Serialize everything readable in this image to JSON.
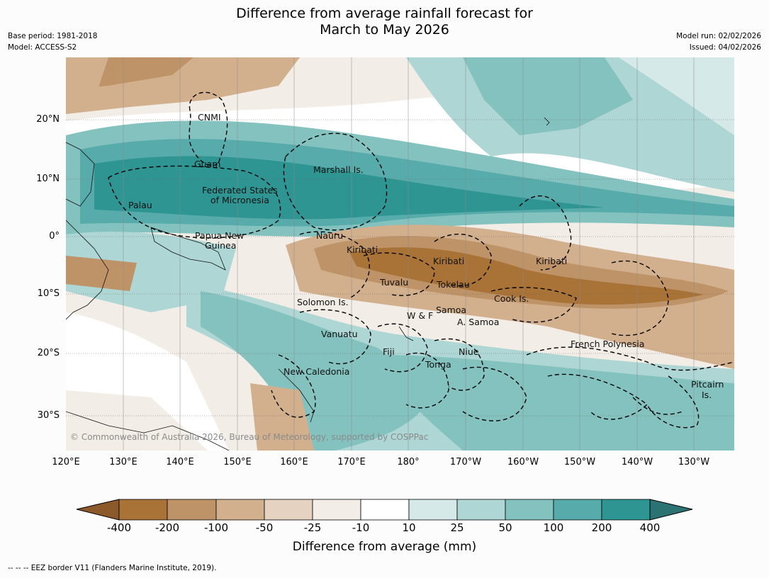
{
  "title": {
    "line1": "Difference from average rainfall forecast for",
    "line2": "March to May 2026"
  },
  "meta": {
    "base_period": "Base period: 1981-2018",
    "model": "Model: ACCESS-S2",
    "model_run": "Model run: 02/02/2026",
    "issued": "Issued: 04/02/2026"
  },
  "copyright": "© Commonwealth of Australia 2026, Bureau of Meteorology, supported by COSPPac",
  "axes": {
    "lat_labels": [
      "20°N",
      "10°N",
      "0°",
      "10°S",
      "20°S",
      "30°S"
    ],
    "lon_labels": [
      "120°E",
      "130°E",
      "140°E",
      "150°E",
      "160°E",
      "170°E",
      "180°",
      "170°W",
      "160°W",
      "150°W",
      "140°W",
      "130°W"
    ]
  },
  "region_labels": [
    "CNMI",
    "Guam",
    "Marshall Is.",
    "Federated States",
    "of Micronesia",
    "Palau",
    "Papua New",
    "Guinea",
    "Nauru",
    "Kiribati",
    "Kiribati",
    "Kiribati",
    "Tuvalu",
    "Tokelau",
    "Cook Is.",
    "Solomon Is.",
    "W & F",
    "Samoa",
    "A. Samoa",
    "Vanuatu",
    "Fiji",
    "Niue",
    "Tonga",
    "French Polynesia",
    "New Caledonia",
    "Pitcairn",
    "Is."
  ],
  "colorbar": {
    "title": "Difference from average (mm)",
    "labels": [
      "-400",
      "-200",
      "-100",
      "-50",
      "-25",
      "-10",
      "10",
      "25",
      "50",
      "100",
      "200",
      "400"
    ],
    "colors": [
      "#8c5a2a",
      "#a97338",
      "#bf9368",
      "#d2b08e",
      "#e5d2c0",
      "#f2ede6",
      "#ffffff",
      "#d5e9e8",
      "#aed6d4",
      "#84c2c0",
      "#57abaa",
      "#2f9593",
      "#2b7372"
    ]
  },
  "footnote": "-- -- -- EEZ border V11 (Flanders Marine Institute, 2019)."
}
